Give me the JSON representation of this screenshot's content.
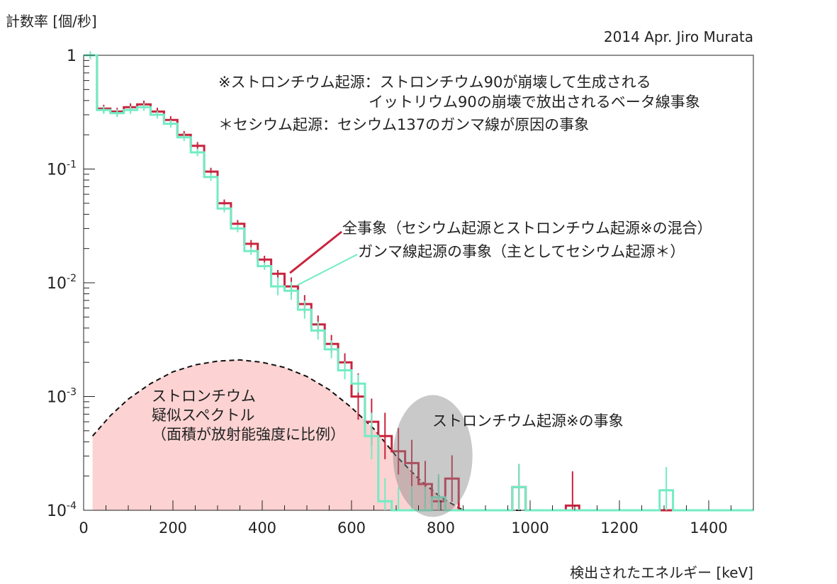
{
  "chart_data": {
    "type": "line",
    "ylabel": "計数率 [個/秒]",
    "xlabel": "検出されたエネルギー [keV]",
    "credit": "2014 Apr. Jiro Murata",
    "x_range": [
      0,
      1500
    ],
    "y_range": [
      0.0001,
      1
    ],
    "y_scale": "log",
    "grid": false,
    "x_ticks": [
      "0",
      "200",
      "400",
      "600",
      "800",
      "1000",
      "1200",
      "1400"
    ],
    "y_ticks": [
      {
        "value": 1,
        "base": "1",
        "exp": ""
      },
      {
        "value": 0.1,
        "base": "10",
        "exp": "-1"
      },
      {
        "value": 0.01,
        "base": "10",
        "exp": "-2"
      },
      {
        "value": 0.001,
        "base": "10",
        "exp": "-3"
      },
      {
        "value": 0.0001,
        "base": "10",
        "exp": "-4"
      }
    ],
    "bin_width": 30,
    "series": [
      {
        "name": "全事象（セシウム起源とストロンチウム起源※の混合）",
        "color": "#c8243e",
        "values": [
          1.0,
          0.34,
          0.32,
          0.35,
          0.37,
          0.32,
          0.27,
          0.2,
          0.16,
          0.095,
          0.05,
          0.033,
          0.022,
          0.016,
          0.012,
          0.0093,
          0.0065,
          0.0043,
          0.0029,
          0.002,
          0.001,
          0.0006,
          0.00045,
          0.00033,
          0.00026,
          0.00017,
          0.00012,
          0.00019,
          0.0001,
          0.0001,
          0.0001,
          0.0001,
          0.00016,
          0.0001,
          0.0001,
          0.0001,
          0.00011,
          0.0001,
          0.0001,
          0.0001,
          0.0001,
          0.0001,
          0.0001,
          0.0001,
          0.0001,
          0.0001,
          0.0001,
          0.0001,
          0.0001,
          0.0001
        ]
      },
      {
        "name": "ガンマ線起源の事象（主としてセシウム起源＊）",
        "color": "#72ecc4",
        "values": [
          1.0,
          0.33,
          0.31,
          0.33,
          0.35,
          0.3,
          0.25,
          0.19,
          0.14,
          0.085,
          0.045,
          0.03,
          0.019,
          0.014,
          0.0093,
          0.0085,
          0.0058,
          0.0038,
          0.0026,
          0.0017,
          0.0013,
          0.00045,
          0.00012,
          0.0001,
          0.0001,
          0.0001,
          0.00013,
          0.0001,
          0.0001,
          0.0001,
          0.0001,
          0.0001,
          0.00016,
          0.0001,
          0.0001,
          0.0001,
          0.0001,
          0.0001,
          0.0001,
          0.0001,
          0.0001,
          0.0001,
          0.0001,
          0.00015,
          0.0001,
          0.0001,
          0.0001,
          0.0001,
          0.0001,
          0.0001
        ]
      }
    ],
    "strontium_spectrum": {
      "label": [
        "ストロンチウム",
        "疑似スペクトル",
        "（面積が放射能強度に比例）"
      ],
      "x": [
        20,
        60,
        100,
        150,
        200,
        250,
        300,
        350,
        400,
        450,
        500,
        550,
        600,
        650,
        700,
        750,
        800,
        850,
        900
      ],
      "y": [
        0.00045,
        0.00068,
        0.00095,
        0.0013,
        0.00165,
        0.0019,
        0.00205,
        0.0021,
        0.002,
        0.0018,
        0.0015,
        0.00115,
        0.0008,
        0.00052,
        0.0003,
        0.00019,
        0.00013,
        0.0001,
        0.0001
      ]
    },
    "annotations": [
      "※ストロンチウム起源：ストロンチウム90が崩壊して生成される",
      "イットリウム90の崩壊で放出されるベータ線事象",
      "＊セシウム起源：セシウム137のガンマ線が原因の事象",
      "ストロンチウム起源※の事象"
    ]
  }
}
